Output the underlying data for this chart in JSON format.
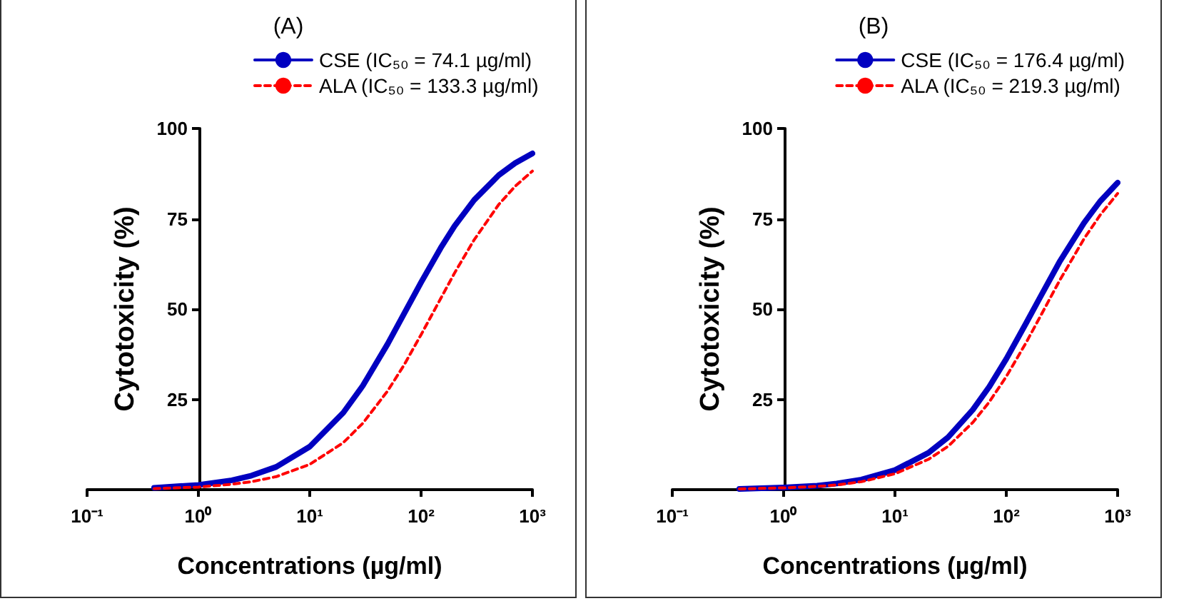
{
  "chart_data": [
    {
      "type": "line",
      "title": "(A)",
      "xlabel": "Concentrations (µg/ml)",
      "ylabel": "Cytotoxicity (%)",
      "log": "x",
      "xlim": [
        0.1,
        1000
      ],
      "xticks": [
        {
          "value": 0.1,
          "label": "10⁻¹"
        },
        {
          "value": 1,
          "label": "10⁰"
        },
        {
          "value": 10,
          "label": "10¹"
        },
        {
          "value": 100,
          "label": "10²"
        },
        {
          "value": 1000,
          "label": "10³"
        }
      ],
      "ylim": [
        0,
        100
      ],
      "yticks": [
        25,
        50,
        75,
        100
      ],
      "legend": "top right",
      "marker": "none",
      "series": [
        {
          "name": "CSE (IC₅₀ = 74.1 µg/ml)",
          "color": "#0000c0",
          "line_style": "solid",
          "x": [
            0.4,
            1,
            2,
            3,
            5,
            10,
            20,
            30,
            50,
            70,
            100,
            150,
            200,
            300,
            500,
            700,
            1000
          ],
          "values": [
            0.5,
            1.3,
            2.6,
            3.9,
            6.3,
            11.9,
            21.3,
            28.8,
            40.3,
            48.6,
            57.4,
            66.9,
            73.0,
            80.2,
            87.1,
            90.4,
            93.1
          ]
        },
        {
          "name": "ALA (IC₅₀ = 133.3 µg/ml)",
          "color": "#ff0000",
          "line_style": "dashed",
          "x": [
            0.4,
            1,
            2,
            3,
            5,
            10,
            20,
            30,
            50,
            70,
            100,
            150,
            200,
            300,
            500,
            700,
            1000
          ],
          "values": [
            0.3,
            0.7,
            1.5,
            2.2,
            3.6,
            7.0,
            13.0,
            18.4,
            27.3,
            34.4,
            42.9,
            52.9,
            60.0,
            69.2,
            79.0,
            84.0,
            88.2
          ]
        }
      ]
    },
    {
      "type": "line",
      "title": "(B)",
      "xlabel": "Concentrations (µg/ml)",
      "ylabel": "Cytotoxicity (%)",
      "log": "x",
      "xlim": [
        0.1,
        1000
      ],
      "xticks": [
        {
          "value": 0.1,
          "label": "10⁻¹"
        },
        {
          "value": 1,
          "label": "10⁰"
        },
        {
          "value": 10,
          "label": "10¹"
        },
        {
          "value": 100,
          "label": "10²"
        },
        {
          "value": 1000,
          "label": "10³"
        }
      ],
      "ylim": [
        0,
        100
      ],
      "yticks": [
        25,
        50,
        75,
        100
      ],
      "legend": "top right",
      "marker": "none",
      "series": [
        {
          "name": "CSE (IC₅₀ = 176.4 µg/ml)",
          "color": "#0000c0",
          "line_style": "solid",
          "x": [
            0.4,
            1,
            2,
            3,
            5,
            10,
            20,
            30,
            50,
            70,
            100,
            150,
            200,
            300,
            500,
            700,
            1000
          ],
          "values": [
            0.2,
            0.6,
            1.1,
            1.7,
            2.8,
            5.4,
            10.2,
            14.5,
            22.1,
            28.4,
            36.2,
            46.0,
            53.1,
            63.0,
            73.9,
            79.9,
            85.0
          ]
        },
        {
          "name": "ALA (IC₅₀ = 219.3 µg/ml)",
          "color": "#ff0000",
          "line_style": "dashed",
          "x": [
            0.4,
            1,
            2,
            3,
            5,
            10,
            20,
            30,
            50,
            70,
            100,
            150,
            200,
            300,
            500,
            700,
            1000
          ],
          "values": [
            0.2,
            0.5,
            0.9,
            1.3,
            2.2,
            4.4,
            8.4,
            12.0,
            18.6,
            24.2,
            31.3,
            40.6,
            47.7,
            57.8,
            69.5,
            76.1,
            82.0
          ]
        }
      ]
    }
  ]
}
